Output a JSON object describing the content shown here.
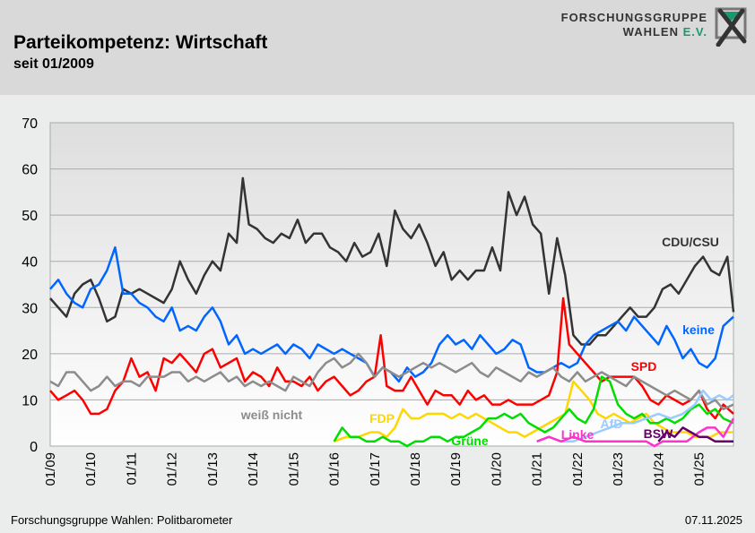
{
  "header": {
    "title": "Parteikompetenz: Wirtschaft",
    "subtitle": "seit 01/2009",
    "logo_line1": "FORSCHUNGSGRUPPE",
    "logo_line2": "WAHLEN",
    "logo_suffix": "E.V."
  },
  "footer": {
    "source": "Forschungsgruppe Wahlen: Politbarometer",
    "date": "07.11.2025"
  },
  "chart_data": {
    "type": "line",
    "title": "Parteikompetenz: Wirtschaft",
    "subtitle": "seit 01/2009",
    "xlabel": "",
    "ylabel": "",
    "ylim": [
      0,
      70
    ],
    "yticks": [
      0,
      10,
      20,
      30,
      40,
      50,
      60,
      70
    ],
    "xlim": [
      2009.0,
      2025.85
    ],
    "xticks": [
      "01/09",
      "01/10",
      "01/11",
      "01/12",
      "01/13",
      "01/14",
      "01/15",
      "01/16",
      "01/17",
      "01/18",
      "01/19",
      "01/20",
      "01/21",
      "01/22",
      "01/23",
      "01/24",
      "01/25"
    ],
    "grid": true,
    "legend": "inline labels",
    "series": [
      {
        "name": "CDU/CSU",
        "color": "#333333",
        "x": [
          2009.0,
          2009.2,
          2009.4,
          2009.6,
          2009.8,
          2010.0,
          2010.2,
          2010.4,
          2010.6,
          2010.8,
          2011.0,
          2011.2,
          2011.4,
          2011.6,
          2011.8,
          2012.0,
          2012.2,
          2012.4,
          2012.6,
          2012.8,
          2013.0,
          2013.2,
          2013.4,
          2013.6,
          2013.75,
          2013.9,
          2014.1,
          2014.3,
          2014.5,
          2014.7,
          2014.9,
          2015.1,
          2015.3,
          2015.5,
          2015.7,
          2015.9,
          2016.1,
          2016.3,
          2016.5,
          2016.7,
          2016.9,
          2017.1,
          2017.3,
          2017.5,
          2017.7,
          2017.9,
          2018.1,
          2018.3,
          2018.5,
          2018.7,
          2018.9,
          2019.1,
          2019.3,
          2019.5,
          2019.7,
          2019.9,
          2020.1,
          2020.3,
          2020.5,
          2020.7,
          2020.9,
          2021.1,
          2021.3,
          2021.5,
          2021.7,
          2021.9,
          2022.1,
          2022.3,
          2022.5,
          2022.7,
          2022.9,
          2023.1,
          2023.3,
          2023.5,
          2023.7,
          2023.9,
          2024.1,
          2024.3,
          2024.5,
          2024.7,
          2024.9,
          2025.1,
          2025.3,
          2025.5,
          2025.7,
          2025.85
        ],
        "y": [
          32,
          30,
          28,
          33,
          35,
          36,
          32,
          27,
          28,
          34,
          33,
          34,
          33,
          32,
          31,
          34,
          40,
          36,
          33,
          37,
          40,
          38,
          46,
          44,
          58,
          48,
          47,
          45,
          44,
          46,
          45,
          49,
          44,
          46,
          46,
          43,
          42,
          40,
          44,
          41,
          42,
          46,
          39,
          51,
          47,
          45,
          48,
          44,
          39,
          42,
          36,
          38,
          36,
          38,
          38,
          43,
          38,
          55,
          50,
          54,
          48,
          46,
          33,
          45,
          37,
          24,
          22,
          22,
          24,
          24,
          26,
          28,
          30,
          28,
          28,
          30,
          34,
          35,
          33,
          36,
          39,
          41,
          38,
          37,
          41,
          29
        ]
      },
      {
        "name": "keine",
        "color": "#0066ff",
        "x": [
          2009.0,
          2009.2,
          2009.4,
          2009.6,
          2009.8,
          2010.0,
          2010.2,
          2010.4,
          2010.6,
          2010.8,
          2011.0,
          2011.2,
          2011.4,
          2011.6,
          2011.8,
          2012.0,
          2012.2,
          2012.4,
          2012.6,
          2012.8,
          2013.0,
          2013.2,
          2013.4,
          2013.6,
          2013.8,
          2014.0,
          2014.2,
          2014.4,
          2014.6,
          2014.8,
          2015.0,
          2015.2,
          2015.4,
          2015.6,
          2015.8,
          2016.0,
          2016.2,
          2016.4,
          2016.6,
          2016.8,
          2017.0,
          2017.2,
          2017.4,
          2017.6,
          2017.8,
          2018.0,
          2018.2,
          2018.4,
          2018.6,
          2018.8,
          2019.0,
          2019.2,
          2019.4,
          2019.6,
          2019.8,
          2020.0,
          2020.2,
          2020.4,
          2020.6,
          2020.8,
          2021.0,
          2021.2,
          2021.4,
          2021.6,
          2021.8,
          2022.0,
          2022.2,
          2022.4,
          2022.6,
          2022.8,
          2023.0,
          2023.2,
          2023.4,
          2023.6,
          2023.8,
          2024.0,
          2024.2,
          2024.4,
          2024.6,
          2024.8,
          2025.0,
          2025.2,
          2025.4,
          2025.6,
          2025.85
        ],
        "y": [
          34,
          36,
          33,
          31,
          30,
          34,
          35,
          38,
          43,
          33,
          33,
          31,
          30,
          28,
          27,
          30,
          25,
          26,
          25,
          28,
          30,
          27,
          22,
          24,
          20,
          21,
          20,
          21,
          22,
          20,
          22,
          21,
          19,
          22,
          21,
          20,
          21,
          20,
          19,
          18,
          15,
          17,
          16,
          14,
          17,
          15,
          16,
          18,
          22,
          24,
          22,
          23,
          21,
          24,
          22,
          20,
          21,
          23,
          22,
          17,
          16,
          16,
          17,
          18,
          17,
          18,
          22,
          24,
          25,
          26,
          27,
          25,
          28,
          26,
          24,
          22,
          26,
          23,
          19,
          21,
          18,
          17,
          19,
          26,
          28
        ]
      },
      {
        "name": "SPD",
        "color": "#ff0000",
        "x": [
          2009.0,
          2009.2,
          2009.4,
          2009.6,
          2009.8,
          2010.0,
          2010.2,
          2010.4,
          2010.6,
          2010.8,
          2011.0,
          2011.2,
          2011.4,
          2011.6,
          2011.8,
          2012.0,
          2012.2,
          2012.4,
          2012.6,
          2012.8,
          2013.0,
          2013.2,
          2013.4,
          2013.6,
          2013.8,
          2014.0,
          2014.2,
          2014.4,
          2014.6,
          2014.8,
          2015.0,
          2015.2,
          2015.4,
          2015.6,
          2015.8,
          2016.0,
          2016.2,
          2016.4,
          2016.6,
          2016.8,
          2017.0,
          2017.15,
          2017.3,
          2017.5,
          2017.7,
          2017.9,
          2018.1,
          2018.3,
          2018.5,
          2018.7,
          2018.9,
          2019.1,
          2019.3,
          2019.5,
          2019.7,
          2019.9,
          2020.1,
          2020.3,
          2020.5,
          2020.7,
          2020.9,
          2021.1,
          2021.3,
          2021.5,
          2021.65,
          2021.8,
          2022.0,
          2022.2,
          2022.4,
          2022.6,
          2022.8,
          2023.0,
          2023.2,
          2023.4,
          2023.6,
          2023.8,
          2024.0,
          2024.2,
          2024.4,
          2024.6,
          2024.8,
          2025.0,
          2025.2,
          2025.4,
          2025.6,
          2025.85
        ],
        "y": [
          12,
          10,
          11,
          12,
          10,
          7,
          7,
          8,
          12,
          14,
          19,
          15,
          16,
          12,
          19,
          18,
          20,
          18,
          16,
          20,
          21,
          17,
          18,
          19,
          14,
          16,
          15,
          13,
          17,
          14,
          14,
          13,
          15,
          12,
          14,
          15,
          13,
          11,
          12,
          14,
          15,
          24,
          13,
          12,
          12,
          15,
          12,
          9,
          12,
          11,
          11,
          9,
          12,
          10,
          11,
          9,
          9,
          10,
          9,
          9,
          9,
          10,
          11,
          16,
          32,
          22,
          20,
          18,
          16,
          14,
          15,
          15,
          15,
          15,
          13,
          10,
          9,
          11,
          10,
          9,
          10,
          12,
          8,
          6,
          9,
          7
        ]
      },
      {
        "name": "weiß nicht",
        "color": "#8c8c8c",
        "x": [
          2009.0,
          2009.2,
          2009.4,
          2009.6,
          2009.8,
          2010.0,
          2010.2,
          2010.4,
          2010.6,
          2010.8,
          2011.0,
          2011.2,
          2011.4,
          2011.6,
          2011.8,
          2012.0,
          2012.2,
          2012.4,
          2012.6,
          2012.8,
          2013.0,
          2013.2,
          2013.4,
          2013.6,
          2013.8,
          2014.0,
          2014.2,
          2014.4,
          2014.6,
          2014.8,
          2015.0,
          2015.2,
          2015.4,
          2015.6,
          2015.8,
          2016.0,
          2016.2,
          2016.4,
          2016.6,
          2016.8,
          2017.0,
          2017.2,
          2017.4,
          2017.6,
          2017.8,
          2018.0,
          2018.2,
          2018.4,
          2018.6,
          2018.8,
          2019.0,
          2019.2,
          2019.4,
          2019.6,
          2019.8,
          2020.0,
          2020.2,
          2020.4,
          2020.6,
          2020.8,
          2021.0,
          2021.2,
          2021.4,
          2021.6,
          2021.8,
          2022.0,
          2022.2,
          2022.4,
          2022.6,
          2022.8,
          2023.0,
          2023.2,
          2023.4,
          2023.6,
          2023.8,
          2024.0,
          2024.2,
          2024.4,
          2024.6,
          2024.8,
          2025.0,
          2025.2,
          2025.4,
          2025.6,
          2025.85
        ],
        "y": [
          14,
          13,
          16,
          16,
          14,
          12,
          13,
          15,
          13,
          14,
          14,
          13,
          15,
          15,
          15,
          16,
          16,
          14,
          15,
          14,
          15,
          16,
          14,
          15,
          13,
          14,
          13,
          14,
          13,
          12,
          15,
          14,
          13,
          16,
          18,
          19,
          17,
          18,
          20,
          18,
          15,
          17,
          16,
          15,
          16,
          17,
          18,
          17,
          18,
          17,
          16,
          17,
          18,
          16,
          15,
          17,
          16,
          15,
          14,
          16,
          15,
          16,
          17,
          15,
          14,
          16,
          14,
          15,
          16,
          15,
          14,
          13,
          15,
          14,
          13,
          12,
          11,
          12,
          11,
          10,
          12,
          9,
          10,
          8,
          9
        ]
      },
      {
        "name": "FDP",
        "color": "#ffd700",
        "x": [
          2016.0,
          2016.3,
          2016.6,
          2016.9,
          2017.1,
          2017.3,
          2017.5,
          2017.7,
          2017.9,
          2018.1,
          2018.3,
          2018.5,
          2018.7,
          2018.9,
          2019.1,
          2019.3,
          2019.5,
          2019.7,
          2019.9,
          2020.1,
          2020.3,
          2020.5,
          2020.7,
          2020.9,
          2021.1,
          2021.3,
          2021.5,
          2021.7,
          2021.9,
          2022.1,
          2022.3,
          2022.5,
          2022.7,
          2022.9,
          2023.1,
          2023.3,
          2023.5,
          2023.7,
          2023.9,
          2024.1,
          2024.3,
          2024.5,
          2024.7,
          2024.9,
          2025.1,
          2025.3,
          2025.5,
          2025.85
        ],
        "y": [
          1,
          2,
          2,
          3,
          3,
          2,
          4,
          8,
          6,
          6,
          7,
          7,
          7,
          6,
          7,
          6,
          7,
          6,
          5,
          4,
          3,
          3,
          2,
          3,
          4,
          5,
          6,
          7,
          14,
          12,
          10,
          7,
          6,
          7,
          6,
          5,
          6,
          7,
          5,
          4,
          3,
          3,
          3,
          2,
          2,
          2,
          3,
          3
        ]
      },
      {
        "name": "Grüne",
        "color": "#00dd00",
        "x": [
          2016.0,
          2016.2,
          2016.4,
          2016.6,
          2016.8,
          2017.0,
          2017.2,
          2017.4,
          2017.6,
          2017.8,
          2018.0,
          2018.2,
          2018.4,
          2018.6,
          2018.8,
          2019.0,
          2019.2,
          2019.4,
          2019.6,
          2019.8,
          2020.0,
          2020.2,
          2020.4,
          2020.6,
          2020.8,
          2021.0,
          2021.2,
          2021.4,
          2021.6,
          2021.8,
          2022.0,
          2022.2,
          2022.4,
          2022.6,
          2022.8,
          2023.0,
          2023.2,
          2023.4,
          2023.6,
          2023.8,
          2024.0,
          2024.2,
          2024.4,
          2024.6,
          2024.8,
          2025.0,
          2025.2,
          2025.4,
          2025.6,
          2025.85
        ],
        "y": [
          1,
          4,
          2,
          2,
          1,
          1,
          2,
          1,
          1,
          0,
          1,
          1,
          2,
          2,
          1,
          2,
          2,
          3,
          4,
          6,
          6,
          7,
          6,
          7,
          5,
          4,
          3,
          4,
          6,
          8,
          6,
          5,
          8,
          15,
          14,
          9,
          7,
          6,
          7,
          5,
          5,
          6,
          5,
          6,
          8,
          9,
          7,
          8,
          6,
          5
        ]
      },
      {
        "name": "AfD",
        "color": "#99ccff",
        "x": [
          2021.0,
          2021.3,
          2021.6,
          2021.9,
          2022.2,
          2022.5,
          2022.8,
          2023.1,
          2023.4,
          2023.7,
          2024.0,
          2024.3,
          2024.6,
          2024.9,
          2025.1,
          2025.3,
          2025.5,
          2025.7,
          2025.85
        ],
        "y": [
          1,
          2,
          1,
          1,
          2,
          3,
          4,
          5,
          5,
          6,
          7,
          6,
          7,
          9,
          12,
          10,
          11,
          10,
          11
        ]
      },
      {
        "name": "Linke",
        "color": "#ff33cc",
        "x": [
          2021.0,
          2021.3,
          2021.6,
          2021.9,
          2022.2,
          2022.5,
          2022.8,
          2023.1,
          2023.4,
          2023.7,
          2023.9,
          2024.1,
          2024.4,
          2024.7,
          2025.0,
          2025.2,
          2025.4,
          2025.6,
          2025.85
        ],
        "y": [
          1,
          2,
          1,
          2,
          1,
          1,
          1,
          1,
          1,
          1,
          0,
          1,
          1,
          1,
          3,
          4,
          4,
          2,
          6
        ]
      },
      {
        "name": "BSW",
        "color": "#660066",
        "x": [
          2024.0,
          2024.2,
          2024.4,
          2024.6,
          2024.8,
          2025.0,
          2025.2,
          2025.4,
          2025.6,
          2025.85
        ],
        "y": [
          1,
          3,
          2,
          4,
          3,
          2,
          2,
          1,
          1,
          1
        ]
      }
    ],
    "annotations": [
      {
        "text": "CDU/CSU",
        "series": "CDU/CSU"
      },
      {
        "text": "keine",
        "series": "keine"
      },
      {
        "text": "SPD",
        "series": "SPD"
      },
      {
        "text": "weiß nicht",
        "series": "weiß nicht"
      },
      {
        "text": "FDP",
        "series": "FDP"
      },
      {
        "text": "Grüne",
        "series": "Grüne"
      },
      {
        "text": "AfD",
        "series": "AfD"
      },
      {
        "text": "Linke",
        "series": "Linke"
      },
      {
        "text": "BSW",
        "series": "BSW"
      }
    ]
  }
}
